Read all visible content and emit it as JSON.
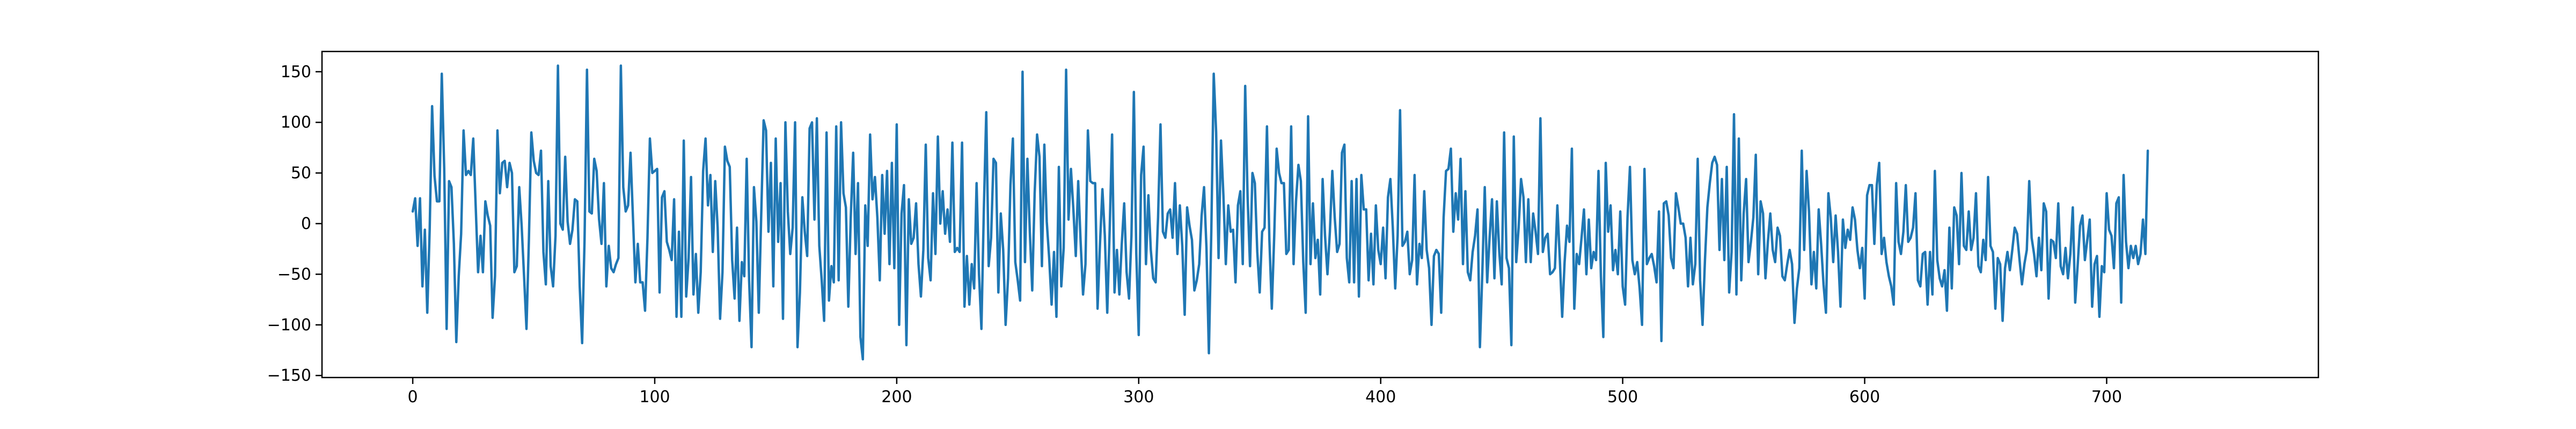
{
  "chart_data": {
    "type": "line",
    "title": "",
    "xlabel": "",
    "ylabel": "",
    "xlim": [
      -37.5,
      787.5
    ],
    "ylim": [
      -152,
      170
    ],
    "x_ticks": [
      0,
      100,
      200,
      300,
      400,
      500,
      600,
      700
    ],
    "y_ticks": [
      -150,
      -100,
      -50,
      0,
      50,
      100,
      150
    ],
    "grid": false,
    "legend": "none",
    "line_color": "#1f77b4",
    "series": [
      {
        "x_start": 0,
        "x_step": 1,
        "values": [
          12,
          25,
          -22,
          25,
          -62,
          -6,
          -88,
          -6,
          116,
          47,
          22,
          22,
          148,
          55,
          -104,
          42,
          36,
          -20,
          -117,
          -52,
          -10,
          92,
          48,
          52,
          48,
          84,
          18,
          -48,
          -12,
          -48,
          22,
          8,
          -2,
          -93,
          -52,
          92,
          30,
          60,
          62,
          36,
          60,
          50,
          -48,
          -42,
          36,
          -2,
          -52,
          -104,
          -16,
          90,
          62,
          50,
          48,
          72,
          -28,
          -60,
          42,
          -42,
          -62,
          -12,
          156,
          0,
          -6,
          66,
          2,
          -20,
          -6,
          24,
          22,
          -62,
          -118,
          -16,
          152,
          12,
          10,
          64,
          52,
          4,
          -20,
          40,
          -62,
          -22,
          -44,
          -48,
          -40,
          -34,
          156,
          36,
          12,
          18,
          70,
          6,
          -58,
          -20,
          -58,
          -58,
          -86,
          -14,
          84,
          50,
          52,
          54,
          -68,
          26,
          32,
          -18,
          -26,
          -36,
          24,
          -92,
          -8,
          -92,
          82,
          -72,
          -34,
          46,
          -70,
          -30,
          -88,
          -48,
          52,
          84,
          18,
          48,
          -28,
          42,
          -4,
          -94,
          -48,
          76,
          62,
          56,
          -36,
          -74,
          -4,
          -96,
          -38,
          -52,
          64,
          -56,
          -122,
          36,
          2,
          -88,
          8,
          102,
          92,
          -8,
          60,
          -62,
          84,
          -18,
          40,
          -94,
          100,
          12,
          -30,
          -4,
          100,
          -122,
          -68,
          26,
          -8,
          -32,
          94,
          100,
          4,
          104,
          -22,
          -56,
          -96,
          90,
          -76,
          -42,
          -58,
          96,
          -56,
          100,
          30,
          16,
          -82,
          6,
          70,
          -30,
          40,
          -112,
          -134,
          18,
          -22,
          88,
          24,
          46,
          6,
          -56,
          48,
          -10,
          52,
          -40,
          60,
          -44,
          98,
          -100,
          10,
          38,
          -120,
          24,
          -20,
          -14,
          20,
          -40,
          -72,
          -26,
          78,
          -34,
          -56,
          30,
          -30,
          86,
          0,
          32,
          -10,
          14,
          -18,
          80,
          -28,
          -24,
          -28,
          80,
          -82,
          -32,
          -80,
          -40,
          -64,
          40,
          -50,
          -104,
          14,
          110,
          -42,
          -14,
          64,
          60,
          -68,
          10,
          -26,
          -100,
          -54,
          38,
          84,
          -38,
          -56,
          -76,
          150,
          -38,
          64,
          -8,
          -66,
          30,
          88,
          66,
          -42,
          78,
          2,
          -34,
          -80,
          -28,
          -92,
          56,
          -62,
          -24,
          152,
          4,
          54,
          14,
          -32,
          42,
          -18,
          -70,
          -40,
          92,
          42,
          40,
          40,
          -84,
          -20,
          34,
          -12,
          -88,
          -6,
          88,
          -68,
          -26,
          -70,
          -20,
          20,
          -48,
          -74,
          -12,
          130,
          -30,
          -110,
          48,
          76,
          -40,
          28,
          -26,
          -54,
          -58,
          6,
          98,
          -8,
          -14,
          10,
          14,
          -14,
          40,
          -30,
          18,
          -22,
          -90,
          16,
          -2,
          -16,
          -66,
          -56,
          -40,
          8,
          36,
          -24,
          -128,
          -8,
          148,
          90,
          -34,
          82,
          28,
          -40,
          18,
          -8,
          -6,
          -58,
          18,
          32,
          -40,
          136,
          26,
          -42,
          50,
          40,
          -28,
          -68,
          -8,
          -4,
          96,
          -16,
          -84,
          -12,
          74,
          50,
          40,
          40,
          -30,
          -26,
          96,
          -40,
          22,
          58,
          42,
          -38,
          -88,
          106,
          -40,
          20,
          -34,
          -16,
          -70,
          44,
          -12,
          -50,
          -8,
          52,
          6,
          -28,
          -20,
          70,
          78,
          -34,
          -58,
          42,
          -58,
          44,
          -72,
          48,
          14,
          14,
          -56,
          -10,
          -60,
          18,
          -26,
          -40,
          -4,
          -54,
          26,
          44,
          -4,
          -64,
          -12,
          112,
          -22,
          -18,
          -8,
          -50,
          -36,
          48,
          -60,
          -20,
          -34,
          32,
          -26,
          -44,
          -100,
          -32,
          -26,
          -30,
          -88,
          6,
          52,
          54,
          74,
          -8,
          30,
          4,
          64,
          -40,
          32,
          -48,
          -56,
          -28,
          -12,
          14,
          -122,
          -48,
          36,
          -58,
          -14,
          24,
          -54,
          22,
          -28,
          -60,
          90,
          -34,
          -44,
          -120,
          86,
          -38,
          -4,
          44,
          26,
          -38,
          24,
          -38,
          10,
          -8,
          -30,
          104,
          -28,
          -14,
          -10,
          -50,
          -48,
          -44,
          18,
          -34,
          -92,
          -38,
          -2,
          -18,
          74,
          -84,
          -30,
          -40,
          -14,
          14,
          -50,
          4,
          -44,
          -28,
          -36,
          52,
          -52,
          -112,
          60,
          -8,
          18,
          -46,
          -26,
          -50,
          12,
          -62,
          -80,
          6,
          56,
          -36,
          -50,
          -38,
          -64,
          -100,
          54,
          -40,
          -34,
          -30,
          -42,
          -58,
          12,
          -116,
          20,
          22,
          8,
          -34,
          -44,
          30,
          16,
          0,
          0,
          -14,
          -62,
          -14,
          -60,
          -40,
          64,
          -56,
          -100,
          -36,
          16,
          40,
          60,
          66,
          58,
          -26,
          44,
          -36,
          56,
          -68,
          -28,
          108,
          -70,
          84,
          -56,
          10,
          44,
          -38,
          -18,
          6,
          68,
          -50,
          22,
          10,
          -54,
          -18,
          10,
          -26,
          -38,
          -4,
          -12,
          -52,
          -56,
          -40,
          -26,
          -40,
          -98,
          -64,
          -44,
          72,
          -26,
          52,
          12,
          -60,
          -28,
          -64,
          14,
          -20,
          -60,
          -88,
          30,
          6,
          -38,
          8,
          -28,
          -82,
          4,
          -24,
          -6,
          -16,
          16,
          4,
          -26,
          -44,
          -24,
          -74,
          28,
          38,
          38,
          -20,
          38,
          60,
          -30,
          -14,
          -38,
          -52,
          -62,
          -80,
          40,
          -18,
          -30,
          -8,
          38,
          -18,
          -14,
          -4,
          30,
          -56,
          -62,
          -30,
          -28,
          -80,
          -28,
          -70,
          52,
          -36,
          -54,
          -62,
          -46,
          -86,
          -4,
          -64,
          16,
          8,
          -40,
          50,
          -22,
          -26,
          12,
          -26,
          -14,
          30,
          -42,
          -48,
          -16,
          -36,
          46,
          -22,
          -28,
          -84,
          -34,
          -40,
          -96,
          -44,
          -28,
          -46,
          -26,
          -4,
          -10,
          -36,
          -60,
          -40,
          -26,
          42,
          -14,
          -30,
          -52,
          -14,
          -46,
          20,
          12,
          -74,
          -16,
          -18,
          -34,
          20,
          -42,
          -50,
          -24,
          -54,
          -30,
          16,
          -78,
          -42,
          -2,
          8,
          -36,
          -16,
          4,
          -82,
          -40,
          -32,
          -92,
          -42,
          -48,
          30,
          -6,
          -12,
          -44,
          20,
          26,
          -78,
          48,
          -18,
          -44,
          -22,
          -34,
          -22,
          -40,
          -30,
          4,
          -30,
          72
        ],
        "_note_removed": true
      }
    ]
  }
}
